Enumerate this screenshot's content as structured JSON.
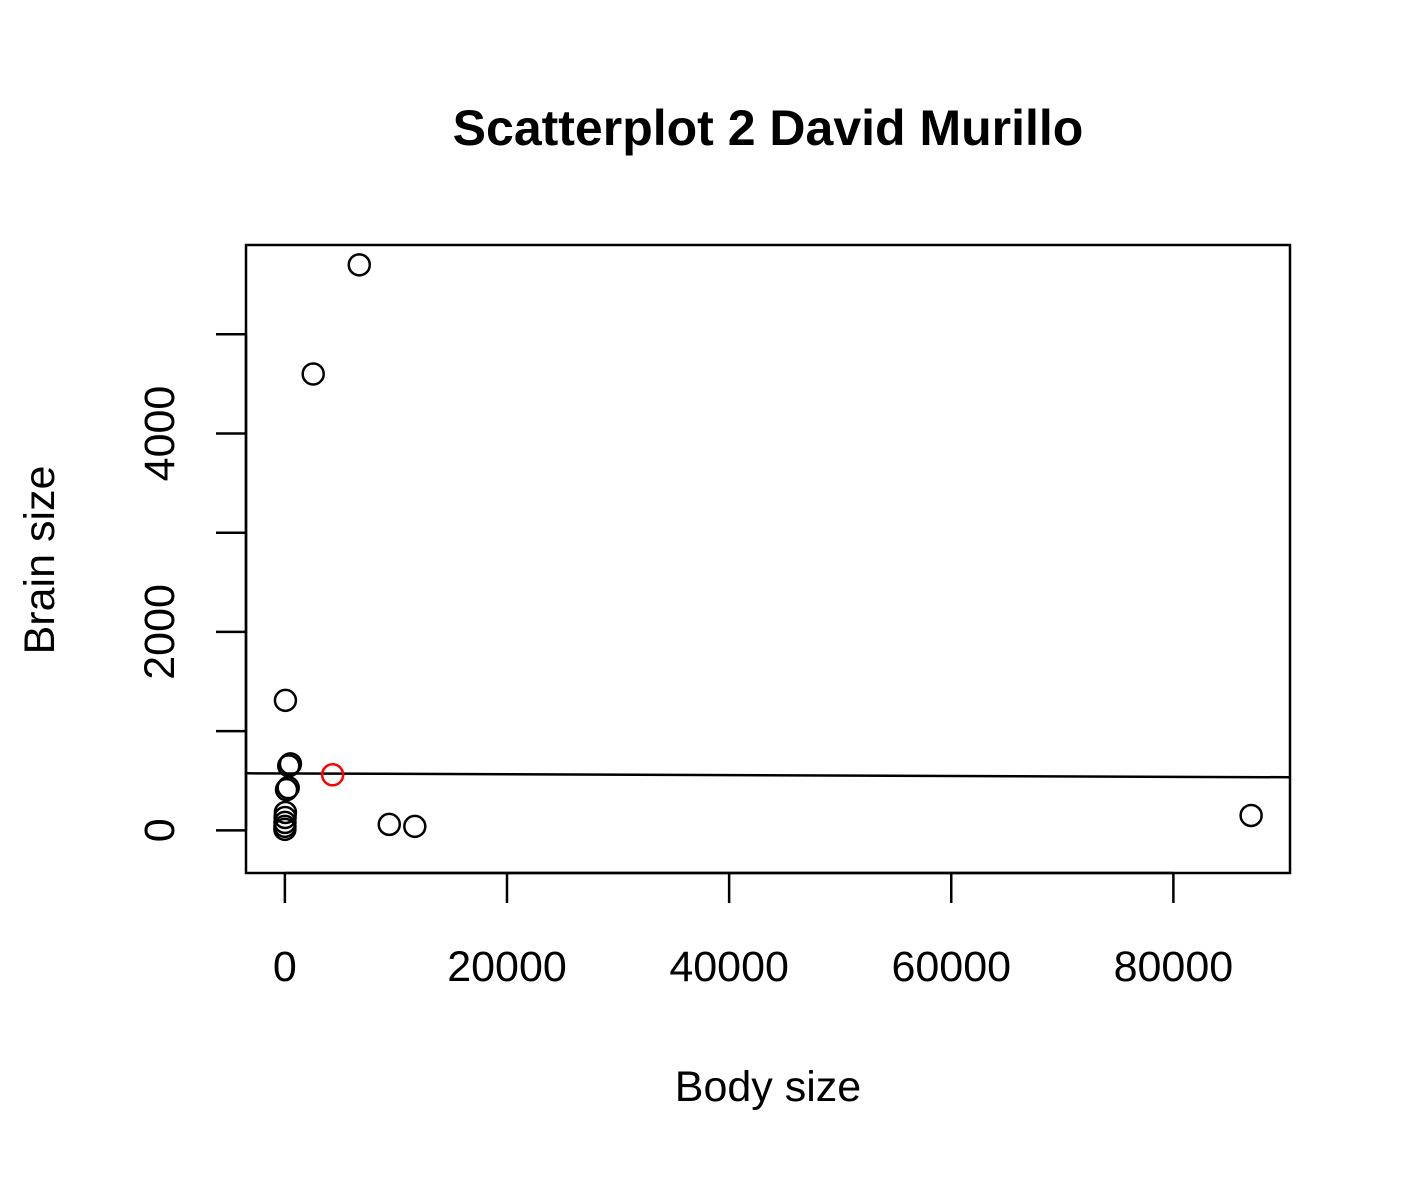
{
  "chart_data": {
    "type": "scatter",
    "title": "Scatterplot 2 David Murillo",
    "xlabel": "Body size",
    "ylabel": "Brain size",
    "xlim": [
      -3500,
      90500
    ],
    "ylim": [
      -430,
      5900
    ],
    "x_ticks": [
      0,
      20000,
      40000,
      60000,
      80000
    ],
    "x_tick_labels": [
      "0",
      "20000",
      "40000",
      "60000",
      "80000"
    ],
    "y_ticks": [
      0,
      1000,
      2000,
      3000,
      4000,
      5000
    ],
    "y_tick_labels": [
      "0",
      "",
      "2000",
      "",
      "4000",
      ""
    ],
    "grid": false,
    "legend": "none",
    "series": [
      {
        "color": "#000000",
        "marker": "open-circle",
        "points": [
          {
            "x": 6700,
            "y": 5700
          },
          {
            "x": 2550,
            "y": 4600
          },
          {
            "x": 50,
            "y": 1310
          },
          {
            "x": 500,
            "y": 670
          },
          {
            "x": 350,
            "y": 650
          },
          {
            "x": 300,
            "y": 430
          },
          {
            "x": 150,
            "y": 410
          },
          {
            "x": 50,
            "y": 180
          },
          {
            "x": 20,
            "y": 130
          },
          {
            "x": 10,
            "y": 80
          },
          {
            "x": 5,
            "y": 40
          },
          {
            "x": 2,
            "y": 10
          },
          {
            "x": 9400,
            "y": 60
          },
          {
            "x": 11700,
            "y": 40
          },
          {
            "x": 87000,
            "y": 150
          }
        ]
      },
      {
        "color": "#ff0000",
        "marker": "open-circle",
        "points": [
          {
            "x": 4300,
            "y": 560
          }
        ]
      }
    ],
    "lines": [
      {
        "type": "regression",
        "color": "#000000",
        "x": [
          -3500,
          90500
        ],
        "y": [
          575,
          535
        ]
      }
    ]
  }
}
